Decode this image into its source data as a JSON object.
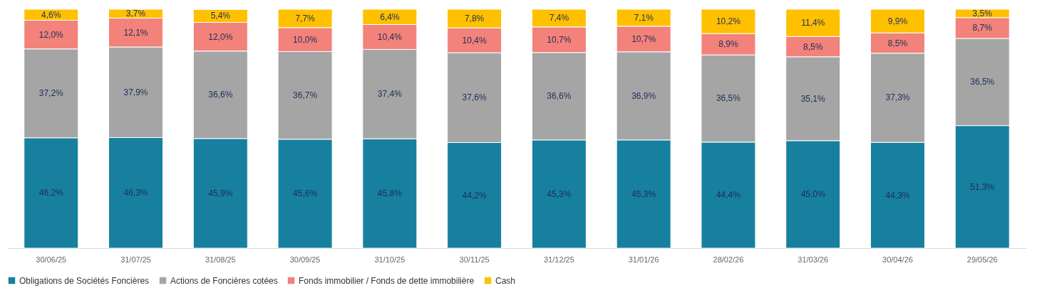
{
  "chart_data": {
    "type": "bar",
    "stacked": true,
    "legend": "bottom",
    "tick_labels": "x",
    "categories": [
      "30/06/25",
      "31/07/25",
      "31/08/25",
      "30/09/25",
      "31/10/25",
      "30/11/25",
      "31/12/25",
      "31/01/26",
      "28/02/26",
      "31/03/26",
      "30/04/26",
      "29/05/26"
    ],
    "series": [
      {
        "name": "Obligations de Sociétés Foncières",
        "color": "#17809f",
        "values": [
          46.2,
          46.3,
          45.9,
          45.6,
          45.8,
          44.2,
          45.3,
          45.3,
          44.4,
          45.0,
          44.3,
          51.3
        ],
        "value_labels": [
          "46,2%",
          "46,3%",
          "45,9%",
          "45,6%",
          "45,8%",
          "44,2%",
          "45,3%",
          "45,3%",
          "44,4%",
          "45,0%",
          "44,3%",
          "51,3%"
        ]
      },
      {
        "name": "Actions de Foncières cotées",
        "color": "#a5a5a5",
        "values": [
          37.2,
          37.9,
          36.6,
          36.7,
          37.4,
          37.6,
          36.6,
          36.9,
          36.5,
          35.1,
          37.3,
          36.5
        ],
        "value_labels": [
          "37,2%",
          "37,9%",
          "36,6%",
          "36,7%",
          "37,4%",
          "37,6%",
          "36,6%",
          "36,9%",
          "36,5%",
          "35,1%",
          "37,3%",
          "36,5%"
        ]
      },
      {
        "name": "Fonds immobilier / Fonds de dette immobilière",
        "color": "#f2827a",
        "values": [
          12.0,
          12.1,
          12.0,
          10.0,
          10.4,
          10.4,
          10.7,
          10.7,
          8.9,
          8.5,
          8.5,
          8.7
        ],
        "value_labels": [
          "12,0%",
          "12,1%",
          "12,0%",
          "10,0%",
          "10,4%",
          "10,4%",
          "10,7%",
          "10,7%",
          "8,9%",
          "8,5%",
          "8,5%",
          "8,7%"
        ]
      },
      {
        "name": "Cash",
        "color": "#ffc000",
        "values": [
          4.6,
          3.7,
          5.4,
          7.7,
          6.4,
          7.8,
          7.4,
          7.1,
          10.2,
          11.4,
          9.9,
          3.5
        ],
        "value_labels": [
          "4,6%",
          "3,7%",
          "5,4%",
          "7,7%",
          "6,4%",
          "7,8%",
          "7,4%",
          "7,1%",
          "10,2%",
          "11,4%",
          "9,9%",
          "3,5%"
        ]
      }
    ]
  }
}
